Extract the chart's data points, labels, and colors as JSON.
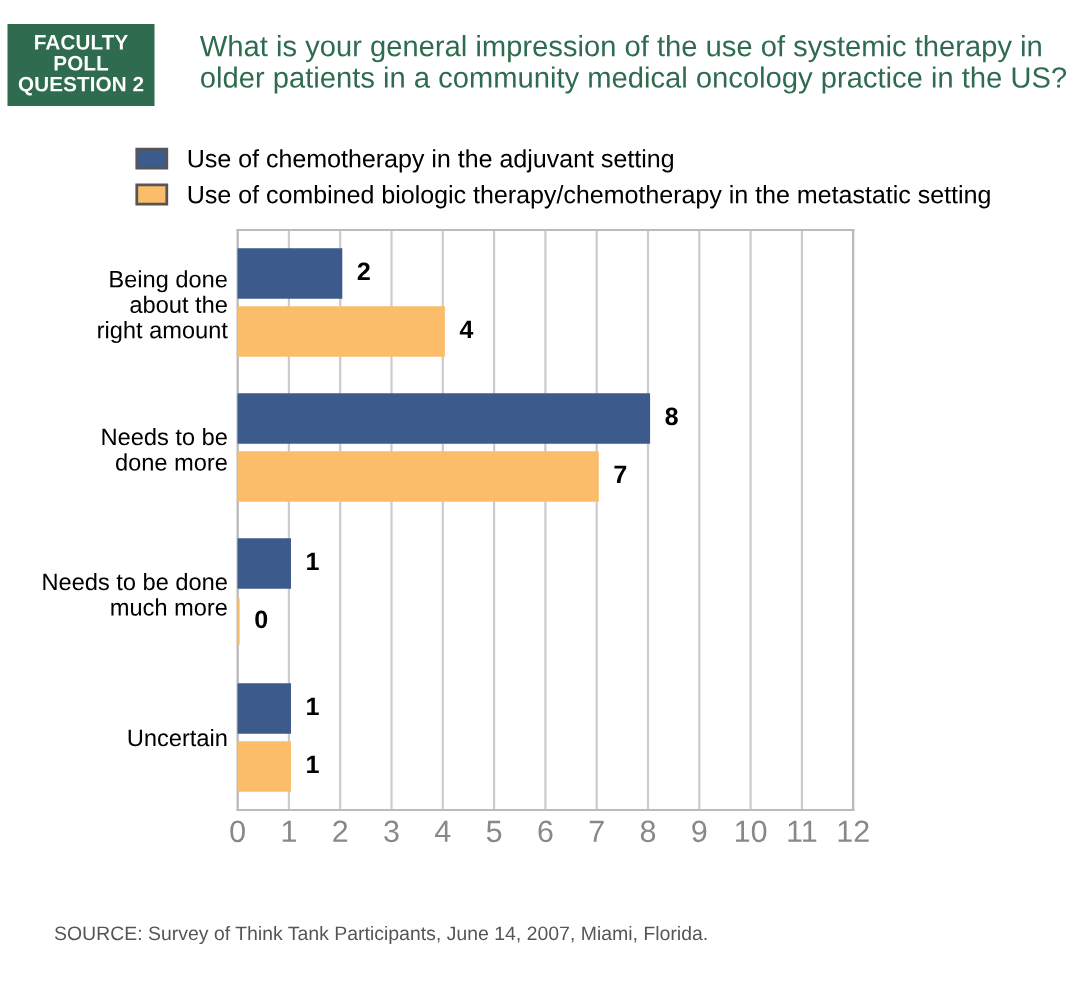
{
  "chart_data": {
    "type": "bar",
    "orientation": "horizontal",
    "title": "What is your general impression of the use of systemic therapy in older patients in a community medical oncology practice in the US?",
    "categories": [
      "Being done\nabout the\nright amount",
      "Needs to be\ndone more",
      "Needs to be done\nmuch more",
      "Uncertain"
    ],
    "series": [
      {
        "name": "Use of chemotherapy in the adjuvant setting",
        "color": "#3d5a8c",
        "values": [
          2,
          8,
          1,
          1
        ]
      },
      {
        "name": "Use of combined biologic therapy/chemotherapy in the metastatic setting",
        "color": "#fbbd6a",
        "values": [
          4,
          7,
          0,
          1
        ]
      }
    ],
    "xlim": [
      0,
      12
    ],
    "xticks": [
      0,
      1,
      2,
      3,
      4,
      5,
      6,
      7,
      8,
      9,
      10,
      11,
      12
    ],
    "grid": "x",
    "legend": "top left",
    "data_labels": true,
    "annotations": [
      "FACULTY\nPOLL\nQUESTION 2",
      "SOURCE: Survey of Think Tank Participants, June 14, 2007, Miami, Florida."
    ]
  }
}
